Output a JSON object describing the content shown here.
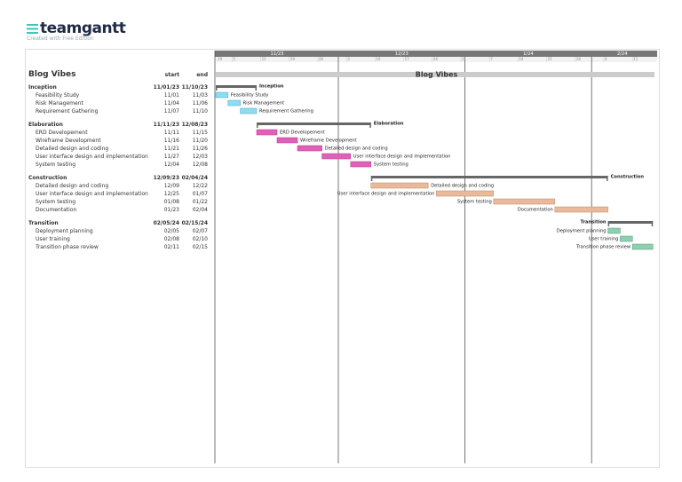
{
  "header": {
    "logo": "teamgantt",
    "edition": "Created with Free Edition"
  },
  "timeline": {
    "months": [
      "11/23",
      "12/23",
      "1/24",
      "2/24"
    ],
    "weeks": [
      "29",
      "5",
      "12",
      "19",
      "26",
      "3",
      "10",
      "17",
      "24",
      "31",
      "7",
      "14",
      "21",
      "28",
      "4",
      "11"
    ]
  },
  "columns": {
    "start": "start",
    "end": "end"
  },
  "project": {
    "name": "Blog Vibes"
  },
  "groups": [
    {
      "name": "Inception",
      "start": "11/01/23",
      "end": "11/10/23",
      "tasks": [
        {
          "name": "Feasibility Study",
          "start": "11/01",
          "end": "11/03"
        },
        {
          "name": "Risk Management",
          "start": "11/04",
          "end": "11/06"
        },
        {
          "name": "Requirement Gathering",
          "start": "11/07",
          "end": "11/10"
        }
      ]
    },
    {
      "name": "Elaboration",
      "start": "11/11/23",
      "end": "12/08/23",
      "tasks": [
        {
          "name": "ERD Developement",
          "start": "11/11",
          "end": "11/15"
        },
        {
          "name": "Wireframe Development",
          "start": "11/16",
          "end": "11/20"
        },
        {
          "name": "Detailed design and coding",
          "start": "11/21",
          "end": "11/26"
        },
        {
          "name": "User interface design and implementation",
          "start": "11/27",
          "end": "12/03"
        },
        {
          "name": "System testing",
          "start": "12/04",
          "end": "12/08"
        }
      ]
    },
    {
      "name": "Construction",
      "start": "12/09/23",
      "end": "02/04/24",
      "tasks": [
        {
          "name": "Detailed design and coding",
          "start": "12/09",
          "end": "12/22"
        },
        {
          "name": "User interface design and implementation",
          "start": "12/25",
          "end": "01/07"
        },
        {
          "name": "System testing",
          "start": "01/08",
          "end": "01/22"
        },
        {
          "name": "Documentation",
          "start": "01/23",
          "end": "02/04"
        }
      ]
    },
    {
      "name": "Transition",
      "start": "02/05/24",
      "end": "02/15/24",
      "tasks": [
        {
          "name": "Deployment planning",
          "start": "02/05",
          "end": "02/07"
        },
        {
          "name": "User training",
          "start": "02/08",
          "end": "02/10"
        },
        {
          "name": "Transition phase review",
          "start": "02/11",
          "end": "02/15"
        }
      ]
    }
  ]
}
